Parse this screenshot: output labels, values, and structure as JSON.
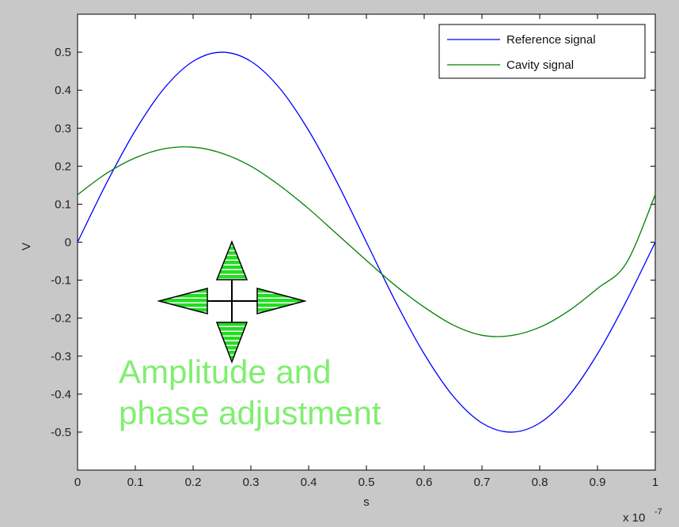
{
  "chart_data": {
    "type": "line",
    "title": "",
    "xlabel": "s",
    "ylabel": "V",
    "x_multiplier_label": "x 10",
    "x_multiplier_exponent": "-7",
    "xlim": [
      0,
      1
    ],
    "ylim": [
      -0.6,
      0.6
    ],
    "xticks": [
      "0",
      "0.1",
      "0.2",
      "0.3",
      "0.4",
      "0.5",
      "0.6",
      "0.7",
      "0.8",
      "0.9",
      "1"
    ],
    "yticks": [
      "0.5",
      "0.4",
      "0.3",
      "0.2",
      "0.1",
      "0",
      "-0.1",
      "-0.2",
      "-0.3",
      "-0.4",
      "-0.5"
    ],
    "grid": false,
    "legend_position": "top-right",
    "series": [
      {
        "name": "Reference signal",
        "color": "#0000ff",
        "x": [
          0,
          0.05,
          0.1,
          0.15,
          0.2,
          0.25,
          0.3,
          0.35,
          0.4,
          0.45,
          0.5,
          0.55,
          0.6,
          0.65,
          0.7,
          0.75,
          0.8,
          0.85,
          0.9,
          0.95,
          1
        ],
        "y": [
          0,
          0.155,
          0.294,
          0.405,
          0.476,
          0.5,
          0.476,
          0.405,
          0.294,
          0.155,
          0,
          -0.155,
          -0.294,
          -0.405,
          -0.476,
          -0.5,
          -0.476,
          -0.405,
          -0.294,
          -0.155,
          0
        ]
      },
      {
        "name": "Cavity signal",
        "color": "#008000",
        "x": [
          0,
          0.05,
          0.1,
          0.15,
          0.2,
          0.25,
          0.3,
          0.35,
          0.4,
          0.45,
          0.5,
          0.55,
          0.6,
          0.65,
          0.7,
          0.75,
          0.8,
          0.85,
          0.9,
          0.95,
          1
        ],
        "y": [
          0.125,
          0.181,
          0.222,
          0.246,
          0.25,
          0.234,
          0.2,
          0.149,
          0.088,
          0.02,
          -0.048,
          -0.114,
          -0.171,
          -0.218,
          -0.245,
          -0.246,
          -0.224,
          -0.181,
          -0.122,
          -0.055,
          0.125
        ]
      }
    ]
  },
  "annotation": {
    "line1": "Amplitude and",
    "line2": "phase adjustment",
    "color": "#80ee70"
  },
  "colors": {
    "figure_bg": "#c8c8c8",
    "axes_bg": "#ffffff",
    "arrow_fill": "#22dd22"
  },
  "icons": {
    "adjust": "four-way-move-arrows-icon"
  }
}
